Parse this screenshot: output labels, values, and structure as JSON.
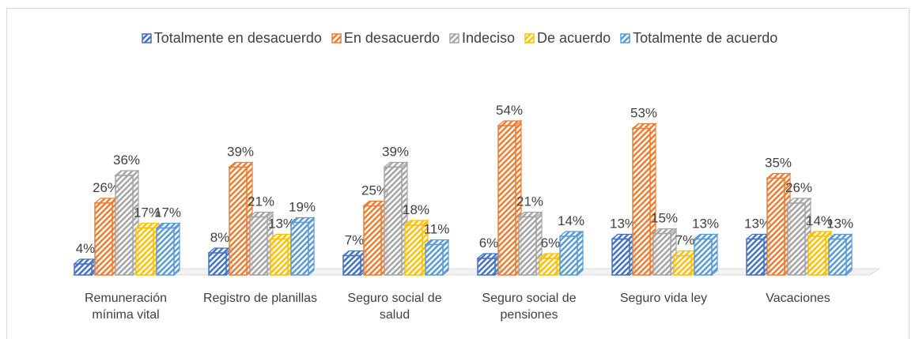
{
  "chart_data": {
    "type": "bar3d",
    "categories": [
      "Remuneración mínima vital",
      "Registro de planillas",
      "Seguro social de salud",
      "Seguro social de pensiones",
      "Seguro vida ley",
      "Vacaciones"
    ],
    "series": [
      {
        "name": "Totalmente en desacuerdo",
        "color": "#4472c4",
        "values": [
          4,
          8,
          7,
          6,
          13,
          13
        ],
        "value_labels": [
          "4%",
          "8%",
          "7%",
          "6%",
          "13%",
          "13%"
        ]
      },
      {
        "name": "En desacuerdo",
        "color": "#ed7d31",
        "values": [
          26,
          39,
          25,
          54,
          53,
          35
        ],
        "value_labels": [
          "26%",
          "39%",
          "25%",
          "54%",
          "53%",
          "35%"
        ]
      },
      {
        "name": "Indeciso",
        "color": "#a5a5a5",
        "values": [
          36,
          21,
          39,
          21,
          15,
          26
        ],
        "value_labels": [
          "36%",
          "21%",
          "39%",
          "21%",
          "15%",
          "26%"
        ]
      },
      {
        "name": "De acuerdo",
        "color": "#ffc000",
        "values": [
          17,
          13,
          18,
          6,
          7,
          14
        ],
        "value_labels": [
          "17%",
          "13%",
          "18%",
          "6%",
          "7%",
          "14%"
        ]
      },
      {
        "name": "Totalmente de acuerdo",
        "color": "#5b9bd5",
        "values": [
          17,
          19,
          11,
          14,
          13,
          13
        ],
        "value_labels": [
          "17%",
          "19%",
          "11%",
          "14%",
          "13%",
          "13%"
        ]
      }
    ],
    "legend": "top"
  }
}
